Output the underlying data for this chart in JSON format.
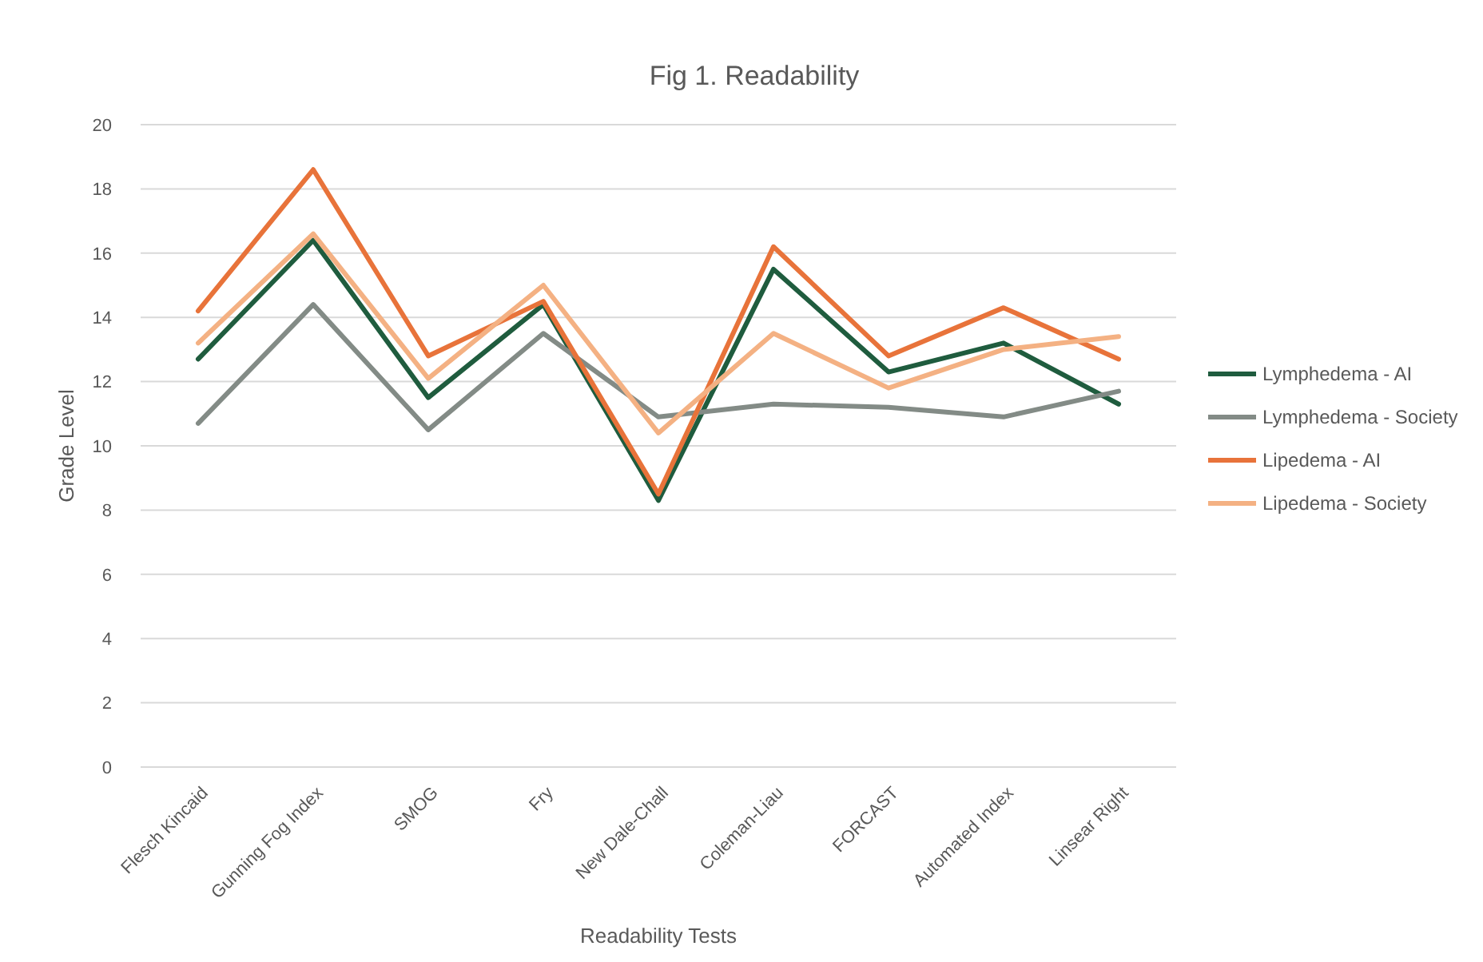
{
  "chart_data": {
    "type": "line",
    "title": "Fig 1. Readability",
    "xlabel": "Readability Tests",
    "ylabel": "Grade Level",
    "categories": [
      "Flesch Kincaid",
      "Gunning Fog Index",
      "SMOG",
      "Fry",
      "New Dale-Chall",
      "Coleman-Liau",
      "FORCAST",
      "Automated Index",
      "Linsear Right"
    ],
    "series": [
      {
        "name": "Lymphedema - AI",
        "color": "#1f5c3e",
        "values": [
          12.7,
          16.4,
          11.5,
          14.4,
          8.3,
          15.5,
          12.3,
          13.2,
          11.3
        ]
      },
      {
        "name": "Lymphedema - Society",
        "color": "#838b86",
        "values": [
          10.7,
          14.4,
          10.5,
          13.5,
          10.9,
          11.3,
          11.2,
          10.9,
          11.7
        ]
      },
      {
        "name": "Lipedema - AI",
        "color": "#e8733a",
        "values": [
          14.2,
          18.6,
          12.8,
          14.5,
          8.5,
          16.2,
          12.8,
          14.3,
          12.7
        ]
      },
      {
        "name": "Lipedema - Society",
        "color": "#f4b183",
        "values": [
          13.2,
          16.6,
          12.1,
          15.0,
          10.4,
          13.5,
          11.8,
          13.0,
          13.4
        ]
      }
    ],
    "ylim": [
      0,
      20
    ],
    "yticks": [
      0,
      2,
      4,
      6,
      8,
      10,
      12,
      14,
      16,
      18,
      20
    ],
    "grid": "y",
    "legend": "right",
    "marker": "none",
    "line_style": "solid"
  }
}
